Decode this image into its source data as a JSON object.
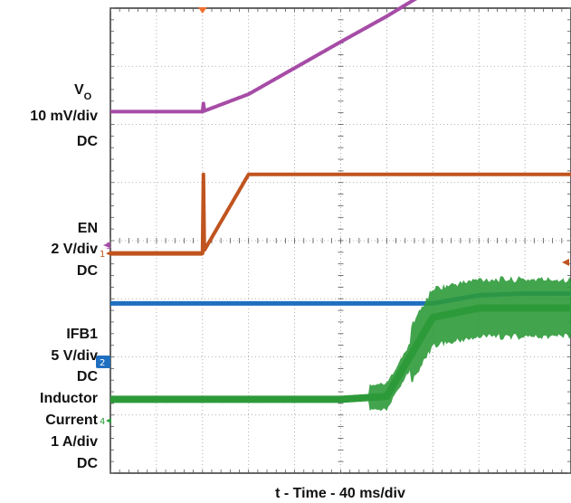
{
  "chart_data": {
    "type": "line",
    "title": "",
    "xlabel": "t - Time - 40 ms/div",
    "grid": true,
    "grid_divisions": {
      "x": 10,
      "y": 8
    },
    "x": [
      0,
      1,
      2,
      3,
      4,
      5,
      6,
      7,
      8,
      9,
      10
    ],
    "x_unit": "div",
    "trigger_x": 2,
    "series": [
      {
        "name_main": "V",
        "name_sub": "O",
        "scale": "10 mV/div",
        "coupling": "DC",
        "color": "#a64ca6",
        "values": [
          6.22,
          6.22,
          6.22,
          6.52,
          6.97,
          7.42,
          7.86,
          8.34,
          8.82,
          8.82,
          8.82
        ]
      },
      {
        "name": "EN",
        "scale": "2 V/div",
        "coupling": "DC",
        "marker": "3",
        "color": "#c0541f",
        "values": [
          3.78,
          3.78,
          3.78,
          5.14,
          5.14,
          5.14,
          5.14,
          5.14,
          5.14,
          5.14,
          5.14
        ]
      },
      {
        "name": "IFB1",
        "scale": "5 V/div",
        "coupling": "DC",
        "marker": "2",
        "color": "#1f6fc0",
        "values": [
          2.92,
          2.92,
          2.92,
          2.92,
          2.92,
          2.92,
          2.92,
          2.92,
          3.06,
          3.09,
          3.09
        ]
      },
      {
        "name": "Inductor Current",
        "name_line1": "Inductor",
        "name_line2": "Current",
        "scale": "1 A/div",
        "coupling": "DC",
        "marker": "4",
        "color": "#2e9a3a",
        "values": [
          1.27,
          1.27,
          1.27,
          1.27,
          1.27,
          1.27,
          1.32,
          2.68,
          2.84,
          2.84,
          2.84
        ]
      }
    ],
    "ch1_marker": "1",
    "ch1_ground_level": 3.78
  }
}
